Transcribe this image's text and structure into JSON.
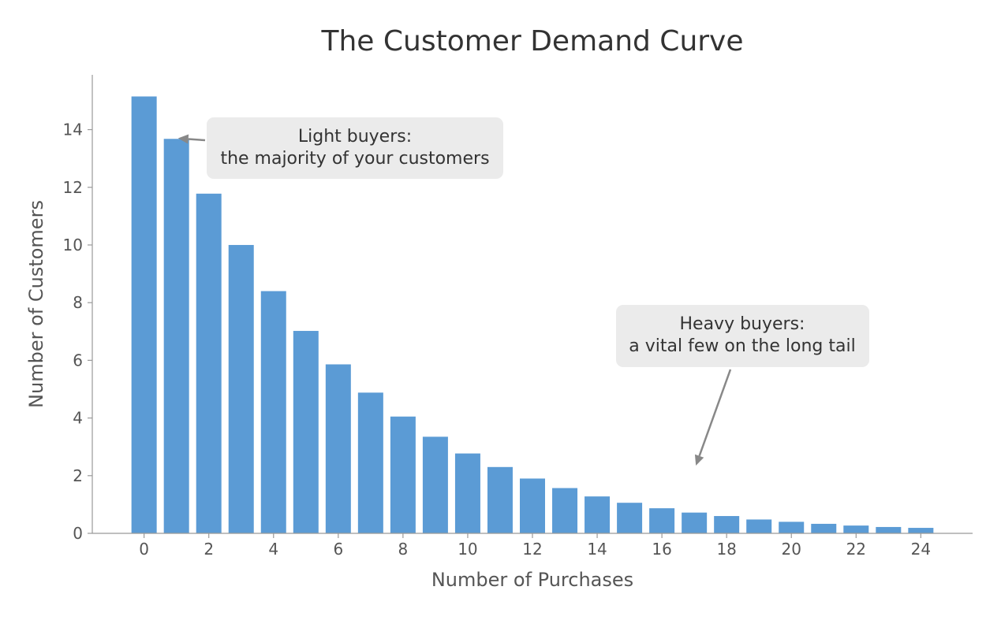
{
  "chart_data": {
    "type": "bar",
    "title": "The Customer Demand Curve",
    "xlabel": "Number of Purchases",
    "ylabel": "Number of Customers",
    "x": [
      0,
      1,
      2,
      3,
      4,
      5,
      6,
      7,
      8,
      9,
      10,
      11,
      12,
      13,
      14,
      15,
      16,
      17,
      18,
      19,
      20,
      21,
      22,
      23,
      24
    ],
    "values": [
      15.15,
      13.68,
      11.78,
      10.0,
      8.4,
      7.02,
      5.86,
      4.88,
      4.05,
      3.35,
      2.77,
      2.3,
      1.9,
      1.57,
      1.28,
      1.06,
      0.87,
      0.72,
      0.6,
      0.48,
      0.4,
      0.33,
      0.27,
      0.22,
      0.19
    ],
    "xlim": [
      -1.6,
      25.6
    ],
    "ylim": [
      0,
      15.9
    ],
    "xticks": [
      "0",
      "2",
      "4",
      "6",
      "8",
      "10",
      "12",
      "14",
      "16",
      "18",
      "20",
      "22",
      "24"
    ],
    "yticks": [
      "0",
      "2",
      "4",
      "6",
      "8",
      "10",
      "12",
      "14"
    ],
    "bar_color": "#5b9bd5",
    "grid": false,
    "annotations": [
      {
        "lines": [
          "Light buyers:",
          "the majority of your customers"
        ],
        "box_color": "#ebebeb",
        "arrow_color": "#888888",
        "arrow_target": {
          "x": 1.05,
          "y": 13.7
        }
      },
      {
        "lines": [
          "Heavy buyers:",
          "a vital few on the long tail"
        ],
        "box_color": "#ebebeb",
        "arrow_color": "#888888",
        "arrow_target": {
          "x": 17.05,
          "y": 2.35
        }
      }
    ]
  }
}
